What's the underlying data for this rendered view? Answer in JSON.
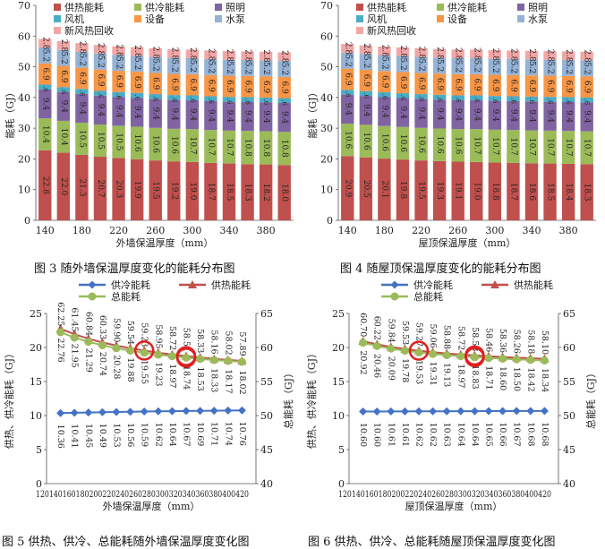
{
  "chart_data": [
    {
      "type": "bar",
      "stacked": true,
      "xlabel": "外墙保温厚度（mm）",
      "ylabel": "能耗（GJ）",
      "ylim": [
        0,
        70
      ],
      "yticks": [
        0,
        10,
        20,
        30,
        40,
        50,
        60,
        70
      ],
      "categories": [
        140,
        160,
        180,
        200,
        220,
        240,
        260,
        280,
        300,
        320,
        340,
        360,
        380,
        400
      ],
      "xticks_shown": [
        "140",
        "180",
        "220",
        "260",
        "300",
        "340",
        "380"
      ],
      "legend": [
        "供热能耗",
        "供冷能耗",
        "照明",
        "风机",
        "设备",
        "水泵",
        "新风热回收"
      ],
      "series": [
        {
          "name": "供热能耗",
          "color": "#c0504d",
          "values": [
            22.8,
            22.0,
            21.3,
            20.7,
            20.3,
            19.9,
            19.5,
            19.2,
            19.0,
            18.7,
            18.5,
            18.3,
            18.2,
            18.0
          ]
        },
        {
          "name": "供冷能耗",
          "color": "#9bbb59",
          "values": [
            10.4,
            10.4,
            10.5,
            10.5,
            10.5,
            10.6,
            10.6,
            10.6,
            10.7,
            10.7,
            10.7,
            10.8,
            10.8,
            10.8
          ]
        },
        {
          "name": "照明",
          "color": "#8064a2",
          "values": [
            9.4,
            9.4,
            9.4,
            9.4,
            9.4,
            9.4,
            9.4,
            9.4,
            9.4,
            9.4,
            9.4,
            9.4,
            9.4,
            9.4
          ]
        },
        {
          "name": "风机",
          "color": "#4bacc6",
          "values": [
            1.6,
            1.6,
            1.6,
            1.6,
            1.6,
            1.6,
            1.6,
            1.6,
            1.6,
            1.6,
            1.6,
            1.6,
            1.6,
            1.6
          ]
        },
        {
          "name": "设备",
          "color": "#f79646",
          "values": [
            6.9,
            6.9,
            6.9,
            6.9,
            6.9,
            6.9,
            6.9,
            6.9,
            6.9,
            6.9,
            6.9,
            6.9,
            6.9,
            6.9
          ]
        },
        {
          "name": "水泵",
          "color": "#95b3d7",
          "values": [
            5.2,
            5.2,
            5.2,
            5.2,
            5.2,
            5.2,
            5.2,
            5.2,
            5.2,
            5.2,
            5.2,
            5.2,
            5.2,
            5.2
          ]
        },
        {
          "name": "新风热回收",
          "color": "#f2a7a6",
          "values": [
            2.8,
            2.8,
            2.8,
            2.8,
            2.8,
            2.8,
            2.8,
            2.8,
            2.8,
            2.8,
            2.8,
            2.8,
            2.8,
            2.8
          ]
        }
      ],
      "caption": "图 3  随外墙保温厚度变化的能耗分布图"
    },
    {
      "type": "bar",
      "stacked": true,
      "xlabel": "屋顶保温厚度（mm）",
      "ylabel": "能耗（GJ）",
      "ylim": [
        0,
        70
      ],
      "yticks": [
        0,
        10,
        20,
        30,
        40,
        50,
        60,
        70
      ],
      "categories": [
        140,
        160,
        180,
        200,
        220,
        240,
        260,
        280,
        300,
        320,
        340,
        360,
        380,
        400
      ],
      "xticks_shown": [
        "140",
        "180",
        "220",
        "260",
        "300",
        "340",
        "380"
      ],
      "legend": [
        "供热能耗",
        "供冷能耗",
        "照明",
        "风机",
        "设备",
        "水泵",
        "新风热回收"
      ],
      "series": [
        {
          "name": "供热能耗",
          "color": "#c0504d",
          "values": [
            20.9,
            20.5,
            20.1,
            19.8,
            19.5,
            19.3,
            19.1,
            19.0,
            18.8,
            18.7,
            18.6,
            18.5,
            18.4,
            18.3
          ]
        },
        {
          "name": "供冷能耗",
          "color": "#9bbb59",
          "values": [
            10.6,
            10.6,
            10.6,
            10.6,
            10.6,
            10.6,
            10.6,
            10.7,
            10.7,
            10.7,
            10.7,
            10.7,
            10.7,
            10.7
          ]
        },
        {
          "name": "照明",
          "color": "#8064a2",
          "values": [
            9.4,
            9.4,
            9.4,
            9.4,
            9.4,
            9.4,
            9.4,
            9.4,
            9.4,
            9.4,
            9.4,
            9.4,
            9.4,
            9.4
          ]
        },
        {
          "name": "风机",
          "color": "#4bacc6",
          "values": [
            1.6,
            1.6,
            1.6,
            1.6,
            1.6,
            1.6,
            1.6,
            1.6,
            1.6,
            1.6,
            1.6,
            1.6,
            1.6,
            1.6
          ]
        },
        {
          "name": "设备",
          "color": "#f79646",
          "values": [
            6.9,
            6.9,
            6.9,
            6.9,
            6.9,
            6.9,
            6.9,
            6.9,
            6.9,
            6.9,
            6.9,
            6.9,
            6.9,
            6.9
          ]
        },
        {
          "name": "水泵",
          "color": "#95b3d7",
          "values": [
            5.2,
            5.2,
            5.2,
            5.2,
            5.2,
            5.2,
            5.2,
            5.2,
            5.2,
            5.2,
            5.2,
            5.2,
            5.2,
            5.2
          ]
        },
        {
          "name": "新风热回收",
          "color": "#f2a7a6",
          "values": [
            2.8,
            2.8,
            2.8,
            2.8,
            2.8,
            2.8,
            2.8,
            2.8,
            2.8,
            2.8,
            2.8,
            2.8,
            2.8,
            2.8
          ]
        }
      ],
      "caption": "图 4  随屋顶保温厚度变化的能耗分布图"
    },
    {
      "type": "line",
      "xlabel": "外墙保温厚度（mm）",
      "ylabel": "供热、供冷能耗（GJ）",
      "ylabel_right": "总能耗（GJ）",
      "ylim": [
        0,
        25
      ],
      "yticks": [
        0,
        5,
        10,
        15,
        20,
        25
      ],
      "ylim_right": [
        40,
        65
      ],
      "yticks_right": [
        40,
        45,
        50,
        55,
        60,
        65
      ],
      "xlim": [
        120,
        420
      ],
      "x": [
        140,
        160,
        180,
        200,
        220,
        240,
        260,
        280,
        300,
        320,
        340,
        360,
        380,
        400
      ],
      "xtick_labels": [
        "120",
        "140",
        "160",
        "180",
        "200",
        "220",
        "240",
        "260",
        "280",
        "300",
        "320",
        "340",
        "360",
        "380",
        "400",
        "420"
      ],
      "series": [
        {
          "name": "供冷能耗",
          "axis": "left",
          "color": "#4472c4",
          "marker": "diamond",
          "values": [
            10.36,
            10.41,
            10.45,
            10.49,
            10.53,
            10.56,
            10.59,
            10.62,
            10.64,
            10.67,
            10.69,
            10.71,
            10.74,
            10.76
          ]
        },
        {
          "name": "供热能耗",
          "axis": "left",
          "color": "#c0504d",
          "marker": "triangle",
          "values": [
            22.76,
            21.95,
            21.29,
            20.74,
            20.28,
            19.88,
            19.55,
            19.23,
            18.97,
            18.74,
            18.53,
            18.33,
            18.17,
            18.02
          ]
        },
        {
          "name": "总能耗",
          "axis": "right",
          "color": "#9bbb59",
          "marker": "circle",
          "values": [
            62.25,
            61.45,
            60.84,
            60.33,
            59.9,
            59.54,
            59.23,
            58.95,
            58.72,
            58.51,
            58.33,
            58.16,
            58.02,
            57.89
          ]
        }
      ],
      "highlight_circles": [
        {
          "series": "供热能耗",
          "x": 260
        },
        {
          "series": "供热能耗",
          "x": 320
        },
        {
          "series": "总能耗",
          "x": 320
        }
      ],
      "caption": "图 5  供热、供冷、总能耗随外墙保温厚度变化图"
    },
    {
      "type": "line",
      "xlabel": "屋顶保温厚度（mm）",
      "ylabel": "供热、供冷能耗（GJ）",
      "ylabel_right": "总能耗（GJ）",
      "ylim": [
        0,
        25
      ],
      "yticks": [
        0,
        5,
        10,
        15,
        20,
        25
      ],
      "ylim_right": [
        40,
        65
      ],
      "yticks_right": [
        40,
        45,
        50,
        55,
        60,
        65
      ],
      "xlim": [
        120,
        420
      ],
      "x": [
        140,
        160,
        180,
        200,
        220,
        240,
        260,
        280,
        300,
        320,
        340,
        360,
        380,
        400
      ],
      "xtick_labels": [
        "120",
        "140",
        "160",
        "180",
        "200",
        "220",
        "240",
        "260",
        "280",
        "300",
        "320",
        "340",
        "360",
        "380",
        "400",
        "420"
      ],
      "series": [
        {
          "name": "供冷能耗",
          "axis": "left",
          "color": "#4472c4",
          "marker": "diamond",
          "values": [
            10.6,
            10.6,
            10.61,
            10.61,
            10.62,
            10.62,
            10.63,
            10.64,
            10.64,
            10.65,
            10.66,
            10.67,
            10.68,
            10.68
          ]
        },
        {
          "name": "供热能耗",
          "axis": "left",
          "color": "#c0504d",
          "marker": "triangle",
          "values": [
            20.92,
            20.46,
            20.09,
            19.78,
            19.53,
            19.31,
            19.13,
            18.97,
            18.83,
            18.71,
            18.6,
            18.5,
            18.42,
            18.34
          ]
        },
        {
          "name": "总能耗",
          "axis": "right",
          "color": "#9bbb59",
          "marker": "circle",
          "values": [
            60.7,
            60.22,
            59.84,
            59.53,
            59.27,
            59.06,
            58.88,
            58.72,
            58.58,
            58.46,
            58.36,
            58.26,
            58.18,
            58.1
          ]
        }
      ],
      "highlight_circles": [
        {
          "series": "供热能耗",
          "x": 220
        },
        {
          "series": "供热能耗",
          "x": 300
        },
        {
          "series": "总能耗",
          "x": 300
        }
      ],
      "caption": "图 6  供热、供冷、总能耗随屋顶保温厚度变化图"
    }
  ]
}
